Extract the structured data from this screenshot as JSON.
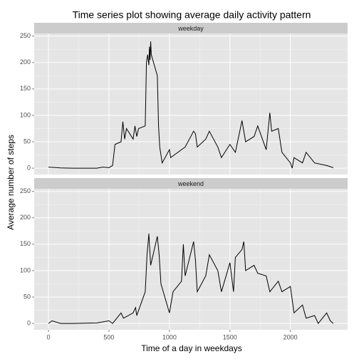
{
  "title": "Time series plot showing average daily activity pattern",
  "x_label": "Time of a day in weekdays",
  "y_label": "Average number of steps",
  "chart_data": [
    {
      "type": "line",
      "title": "weekday",
      "color": "#000000",
      "grid": true,
      "x": [
        0,
        100,
        200,
        300,
        400,
        450,
        500,
        530,
        550,
        600,
        615,
        630,
        645,
        700,
        715,
        730,
        745,
        800,
        810,
        820,
        830,
        835,
        840,
        845,
        850,
        900,
        910,
        920,
        930,
        940,
        1000,
        1010,
        1100,
        1130,
        1200,
        1215,
        1230,
        1300,
        1330,
        1400,
        1430,
        1500,
        1545,
        1600,
        1630,
        1700,
        1730,
        1800,
        1830,
        1845,
        1900,
        1930,
        2000,
        2015,
        2030,
        2100,
        2130,
        2200,
        2300,
        2355
      ],
      "values": [
        2,
        0.5,
        0,
        0,
        0,
        2,
        1,
        5,
        45,
        50,
        88,
        55,
        75,
        55,
        80,
        60,
        75,
        80,
        200,
        215,
        195,
        230,
        205,
        240,
        215,
        175,
        80,
        40,
        25,
        10,
        35,
        20,
        35,
        40,
        70,
        65,
        40,
        55,
        70,
        40,
        20,
        45,
        30,
        90,
        50,
        60,
        80,
        35,
        105,
        70,
        75,
        30,
        10,
        0,
        20,
        10,
        30,
        10,
        5,
        1
      ],
      "xlim": [
        -118,
        2473
      ],
      "ylim": [
        -12,
        255
      ],
      "xticks": [
        0,
        500,
        1000,
        1500,
        2000
      ],
      "yticks": [
        0,
        50,
        100,
        150,
        200,
        250
      ]
    },
    {
      "type": "line",
      "title": "weekend",
      "color": "#000000",
      "grid": true,
      "x": [
        0,
        30,
        100,
        200,
        400,
        500,
        530,
        600,
        620,
        700,
        720,
        730,
        800,
        815,
        830,
        845,
        900,
        915,
        930,
        1000,
        1030,
        1100,
        1115,
        1130,
        1200,
        1215,
        1230,
        1300,
        1330,
        1400,
        1430,
        1500,
        1530,
        1545,
        1600,
        1615,
        1630,
        1700,
        1730,
        1800,
        1830,
        1900,
        1930,
        2000,
        2030,
        2100,
        2130,
        2200,
        2230,
        2300,
        2330,
        2355
      ],
      "values": [
        0,
        5,
        0,
        0,
        1,
        5,
        0,
        20,
        10,
        20,
        30,
        15,
        60,
        130,
        170,
        110,
        165,
        130,
        75,
        20,
        60,
        80,
        150,
        90,
        155,
        120,
        60,
        90,
        130,
        100,
        60,
        115,
        60,
        125,
        140,
        155,
        100,
        110,
        95,
        90,
        60,
        80,
        60,
        70,
        20,
        35,
        10,
        15,
        0,
        20,
        5,
        0
      ],
      "xlim": [
        -118,
        2473
      ],
      "ylim": [
        -12,
        255
      ],
      "xticks": [
        0,
        500,
        1000,
        1500,
        2000
      ],
      "yticks": [
        0,
        50,
        100,
        150,
        200,
        250
      ]
    }
  ]
}
